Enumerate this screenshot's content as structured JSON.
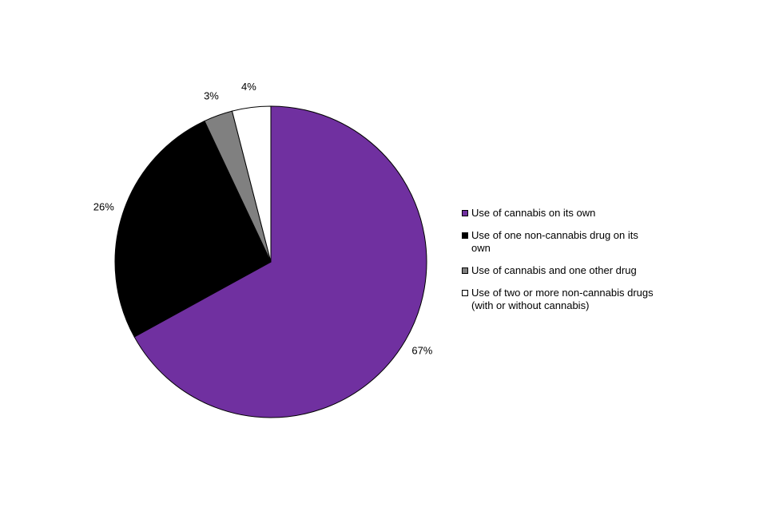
{
  "chart_data": {
    "type": "pie",
    "categories": [
      "Use of cannabis on its own",
      "Use of one non-cannabis drug on its own",
      "Use of cannabis and one other drug",
      "Use of two or more non-cannabis drugs (with or without cannabis)"
    ],
    "values": [
      67,
      26,
      3,
      4
    ],
    "value_labels": [
      "67%",
      "26%",
      "3%",
      "4%"
    ],
    "colors": [
      "#7030a0",
      "#000000",
      "#808080",
      "#ffffff"
    ]
  }
}
